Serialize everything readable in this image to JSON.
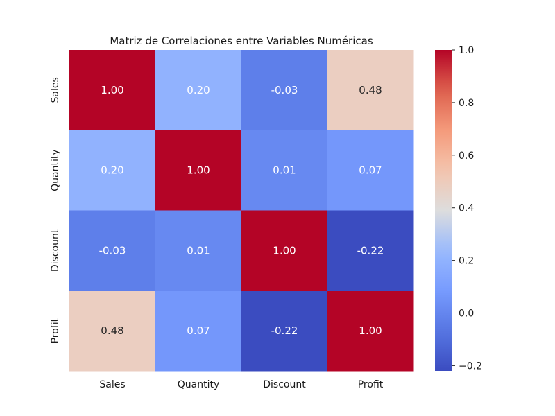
{
  "chart_data": {
    "type": "heatmap",
    "title": "Matriz de Correlaciones entre Variables Numéricas",
    "xlabel": "",
    "ylabel": "",
    "x_categories": [
      "Sales",
      "Quantity",
      "Discount",
      "Profit"
    ],
    "y_categories": [
      "Sales",
      "Quantity",
      "Discount",
      "Profit"
    ],
    "values": [
      [
        1.0,
        0.2,
        -0.03,
        0.48
      ],
      [
        0.2,
        1.0,
        0.01,
        0.07
      ],
      [
        -0.03,
        0.01,
        1.0,
        -0.22
      ],
      [
        0.48,
        0.07,
        -0.22,
        1.0
      ]
    ],
    "annotations": [
      [
        "1.00",
        "0.20",
        "-0.03",
        "0.48"
      ],
      [
        "0.20",
        "1.00",
        "0.01",
        "0.07"
      ],
      [
        "-0.03",
        "0.01",
        "1.00",
        "-0.22"
      ],
      [
        "0.48",
        "0.07",
        "-0.22",
        "1.00"
      ]
    ],
    "colormap": "coolwarm",
    "colorbar": {
      "range": [
        -0.22,
        1.0
      ],
      "ticks": [
        -0.2,
        0.0,
        0.2,
        0.4,
        0.6,
        0.8,
        1.0
      ],
      "tick_labels": [
        "−0.2",
        "0.0",
        "0.2",
        "0.4",
        "0.6",
        "0.8",
        "1.0"
      ]
    },
    "grid": false,
    "legend": "colorbar-right"
  }
}
